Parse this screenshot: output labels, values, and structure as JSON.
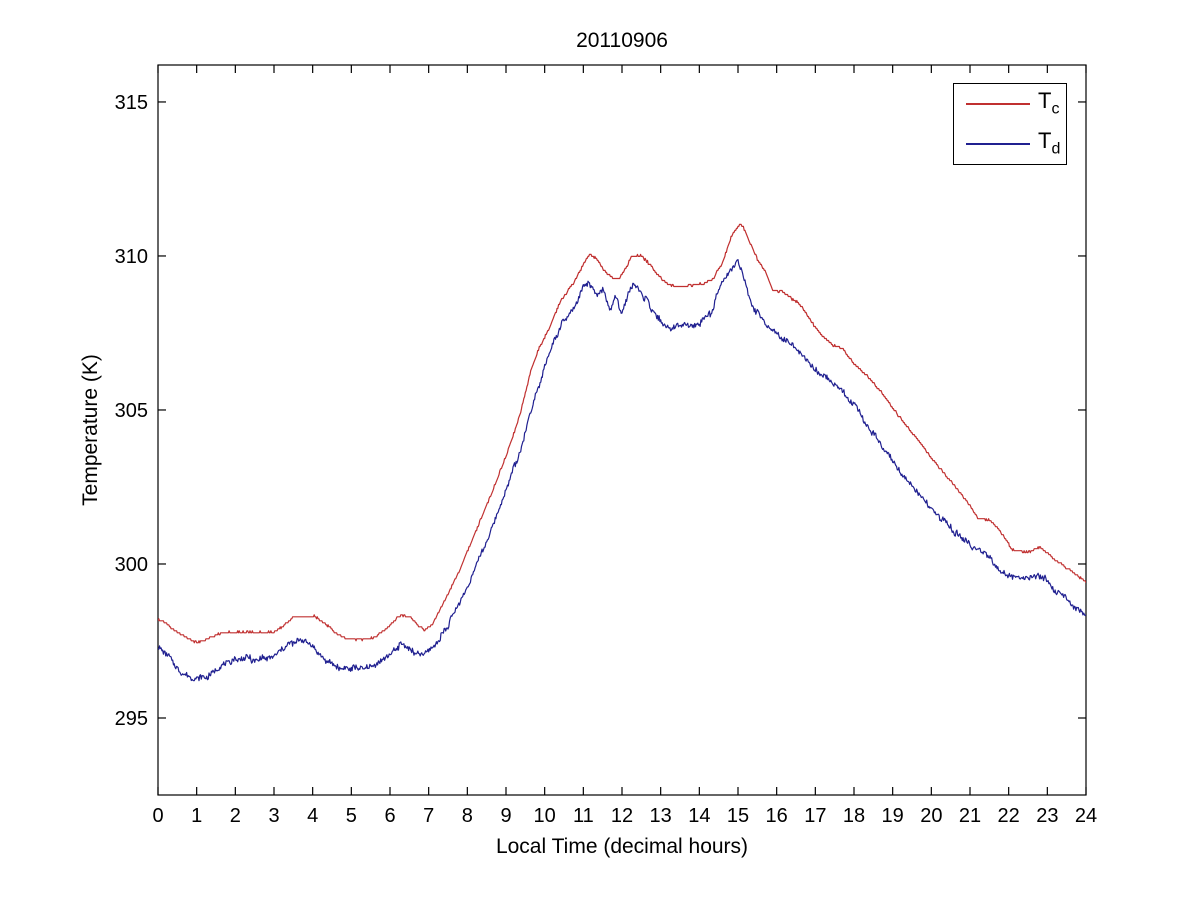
{
  "chart_data": {
    "type": "line",
    "title": "20110906",
    "xlabel": "Local Time (decimal hours)",
    "ylabel": "Temperature (K)",
    "xlim": [
      0,
      24
    ],
    "ylim": [
      292.5,
      316.2
    ],
    "xticks": [
      0,
      1,
      2,
      3,
      4,
      5,
      6,
      7,
      8,
      9,
      10,
      11,
      12,
      13,
      14,
      15,
      16,
      17,
      18,
      19,
      20,
      21,
      22,
      23,
      24
    ],
    "yticks": [
      295,
      300,
      305,
      310,
      315
    ],
    "grid": false,
    "axis_color": "#000000",
    "background": "#ffffff",
    "legend": {
      "position": "northeast",
      "entries": [
        {
          "label_main": "T",
          "label_sub": "c",
          "color": "#c03030"
        },
        {
          "label_main": "T",
          "label_sub": "d",
          "color": "#202090"
        }
      ]
    },
    "series": [
      {
        "name": "Tc",
        "color": "#c03030",
        "style": "quantized",
        "quantum": 0.065,
        "noise": 0.05,
        "seed": 1,
        "keypoints": [
          [
            0,
            298.2
          ],
          [
            0.2,
            298.1
          ],
          [
            0.4,
            297.85
          ],
          [
            0.7,
            297.65
          ],
          [
            1.0,
            297.45
          ],
          [
            1.35,
            297.6
          ],
          [
            1.65,
            297.78
          ],
          [
            2.6,
            297.78
          ],
          [
            3.0,
            297.8
          ],
          [
            3.25,
            298.0
          ],
          [
            3.5,
            298.28
          ],
          [
            4.05,
            298.3
          ],
          [
            4.3,
            298.1
          ],
          [
            4.6,
            297.75
          ],
          [
            4.85,
            297.57
          ],
          [
            5.35,
            297.55
          ],
          [
            5.65,
            297.65
          ],
          [
            6.0,
            298.0
          ],
          [
            6.25,
            298.33
          ],
          [
            6.5,
            298.3
          ],
          [
            6.7,
            298.05
          ],
          [
            6.9,
            297.85
          ],
          [
            7.1,
            298.05
          ],
          [
            7.45,
            298.9
          ],
          [
            7.8,
            299.8
          ],
          [
            8.2,
            301.0
          ],
          [
            8.6,
            302.2
          ],
          [
            9.0,
            303.5
          ],
          [
            9.35,
            304.8
          ],
          [
            9.65,
            306.3
          ],
          [
            9.85,
            307.0
          ],
          [
            10.1,
            307.6
          ],
          [
            10.4,
            308.5
          ],
          [
            10.75,
            309.15
          ],
          [
            11.0,
            309.7
          ],
          [
            11.15,
            310.05
          ],
          [
            11.35,
            309.9
          ],
          [
            11.55,
            309.5
          ],
          [
            11.75,
            309.28
          ],
          [
            11.95,
            309.3
          ],
          [
            12.1,
            309.6
          ],
          [
            12.25,
            310.0
          ],
          [
            12.5,
            310.0
          ],
          [
            12.7,
            309.75
          ],
          [
            12.95,
            309.35
          ],
          [
            13.15,
            309.1
          ],
          [
            13.45,
            309.0
          ],
          [
            13.8,
            309.05
          ],
          [
            14.1,
            309.1
          ],
          [
            14.35,
            309.25
          ],
          [
            14.6,
            309.8
          ],
          [
            14.85,
            310.7
          ],
          [
            15.05,
            311.05
          ],
          [
            15.15,
            310.9
          ],
          [
            15.3,
            310.45
          ],
          [
            15.5,
            309.9
          ],
          [
            15.7,
            309.5
          ],
          [
            15.9,
            308.9
          ],
          [
            16.15,
            308.85
          ],
          [
            16.4,
            308.6
          ],
          [
            16.6,
            308.45
          ],
          [
            16.85,
            307.95
          ],
          [
            17.15,
            307.45
          ],
          [
            17.45,
            307.1
          ],
          [
            17.7,
            307.0
          ],
          [
            18.0,
            306.5
          ],
          [
            18.35,
            306.1
          ],
          [
            18.7,
            305.6
          ],
          [
            19.1,
            304.9
          ],
          [
            19.6,
            304.1
          ],
          [
            20.1,
            303.3
          ],
          [
            20.6,
            302.55
          ],
          [
            21.0,
            301.9
          ],
          [
            21.2,
            301.5
          ],
          [
            21.55,
            301.4
          ],
          [
            21.85,
            300.95
          ],
          [
            22.1,
            300.45
          ],
          [
            22.55,
            300.4
          ],
          [
            22.8,
            300.55
          ],
          [
            23.05,
            300.3
          ],
          [
            23.35,
            300.0
          ],
          [
            23.65,
            299.75
          ],
          [
            24,
            299.4
          ]
        ]
      },
      {
        "name": "Td",
        "color": "#202090",
        "style": "noisy",
        "quantum": 0.03,
        "noise": 0.16,
        "seed": 7,
        "keypoints": [
          [
            0,
            297.35
          ],
          [
            0.3,
            297.0
          ],
          [
            0.6,
            296.5
          ],
          [
            0.85,
            296.32
          ],
          [
            1.3,
            296.35
          ],
          [
            1.7,
            296.75
          ],
          [
            2.1,
            296.95
          ],
          [
            2.6,
            296.9
          ],
          [
            2.95,
            297.0
          ],
          [
            3.3,
            297.35
          ],
          [
            3.7,
            297.5
          ],
          [
            3.95,
            297.4
          ],
          [
            4.25,
            297.0
          ],
          [
            4.6,
            296.63
          ],
          [
            5.1,
            296.6
          ],
          [
            5.5,
            296.68
          ],
          [
            5.9,
            296.95
          ],
          [
            6.25,
            297.38
          ],
          [
            6.55,
            297.2
          ],
          [
            6.85,
            297.0
          ],
          [
            7.15,
            297.3
          ],
          [
            7.5,
            298.0
          ],
          [
            7.85,
            298.9
          ],
          [
            8.25,
            300.0
          ],
          [
            8.65,
            301.2
          ],
          [
            9.05,
            302.6
          ],
          [
            9.4,
            303.8
          ],
          [
            9.7,
            305.2
          ],
          [
            9.95,
            306.2
          ],
          [
            10.2,
            307.1
          ],
          [
            10.45,
            307.8
          ],
          [
            10.75,
            308.3
          ],
          [
            11.0,
            309.0
          ],
          [
            11.15,
            309.1
          ],
          [
            11.35,
            308.75
          ],
          [
            11.5,
            308.95
          ],
          [
            11.7,
            308.25
          ],
          [
            11.85,
            308.7
          ],
          [
            12.0,
            308.1
          ],
          [
            12.15,
            308.75
          ],
          [
            12.3,
            309.15
          ],
          [
            12.5,
            308.8
          ],
          [
            12.75,
            308.3
          ],
          [
            12.95,
            308.0
          ],
          [
            13.15,
            307.6
          ],
          [
            13.45,
            307.8
          ],
          [
            13.75,
            307.7
          ],
          [
            14.05,
            307.85
          ],
          [
            14.3,
            308.15
          ],
          [
            14.55,
            309.1
          ],
          [
            14.8,
            309.5
          ],
          [
            15.0,
            309.8
          ],
          [
            15.15,
            309.3
          ],
          [
            15.35,
            308.4
          ],
          [
            15.6,
            308.0
          ],
          [
            15.8,
            307.7
          ],
          [
            16.05,
            307.4
          ],
          [
            16.3,
            307.15
          ],
          [
            16.5,
            307.1
          ],
          [
            16.75,
            306.6
          ],
          [
            17.05,
            306.25
          ],
          [
            17.35,
            305.95
          ],
          [
            17.65,
            305.65
          ],
          [
            17.95,
            305.3
          ],
          [
            18.3,
            304.6
          ],
          [
            18.8,
            303.7
          ],
          [
            19.3,
            302.8
          ],
          [
            19.8,
            302.1
          ],
          [
            20.3,
            301.4
          ],
          [
            20.7,
            300.95
          ],
          [
            21.05,
            300.55
          ],
          [
            21.35,
            300.45
          ],
          [
            21.65,
            300.0
          ],
          [
            21.95,
            299.65
          ],
          [
            22.25,
            299.55
          ],
          [
            22.6,
            299.55
          ],
          [
            22.85,
            299.65
          ],
          [
            23.15,
            299.2
          ],
          [
            23.45,
            298.9
          ],
          [
            23.7,
            298.6
          ],
          [
            24,
            298.3
          ]
        ]
      }
    ]
  }
}
